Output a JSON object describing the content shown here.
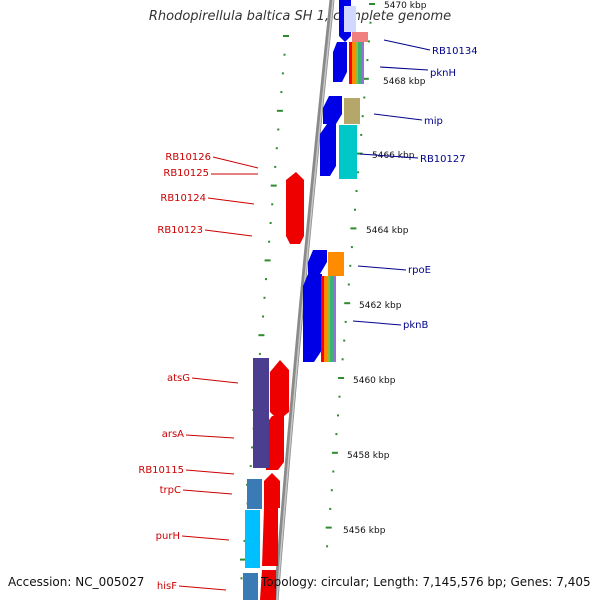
{
  "title": "Rhodopirellula baltica SH 1, complete genome",
  "footer": {
    "accession": "Accession: NC_005027",
    "summary": "Topology: circular; Length: 7,145,576 bp; Genes: 7,405"
  },
  "colors": {
    "backbone": "#8a8a8a",
    "tick": "#2e8b2e",
    "reverse_label": "#cc0000",
    "forward_label": "#00008b",
    "forward_gene": "#0000e6",
    "reverse_gene": "#ee0000",
    "reverse_cog_purple": "#4b3d8f",
    "reverse_cog_steel": "#3a7ab5",
    "reverse_cog_cyan": "#00bfff",
    "forward_cog_cyan": "#00c8c8",
    "forward_cog_khaki": "#b5a66a",
    "forward_cog_orange": "#ff8c00",
    "forward_cog_pink": "#f08080"
  },
  "scale": {
    "unit": "kbp",
    "ticks": [
      {
        "label": "5470 kbp",
        "value": 5470
      },
      {
        "label": "5468 kbp",
        "value": 5468
      },
      {
        "label": "5466 kbp",
        "value": 5466
      },
      {
        "label": "5464 kbp",
        "value": 5464
      },
      {
        "label": "5462 kbp",
        "value": 5462
      },
      {
        "label": "5460 kbp",
        "value": 5460
      },
      {
        "label": "5458 kbp",
        "value": 5458
      },
      {
        "label": "5456 kbp",
        "value": 5456
      }
    ]
  },
  "forward_labels": [
    "RB10134",
    "pknH",
    "mip",
    "RB10127",
    "rpoE",
    "pknB"
  ],
  "reverse_labels": [
    "RB10126",
    "RB10125",
    "RB10124",
    "RB10123",
    "atsG",
    "arsA",
    "RB10115",
    "trpC",
    "purH",
    "hisF"
  ]
}
